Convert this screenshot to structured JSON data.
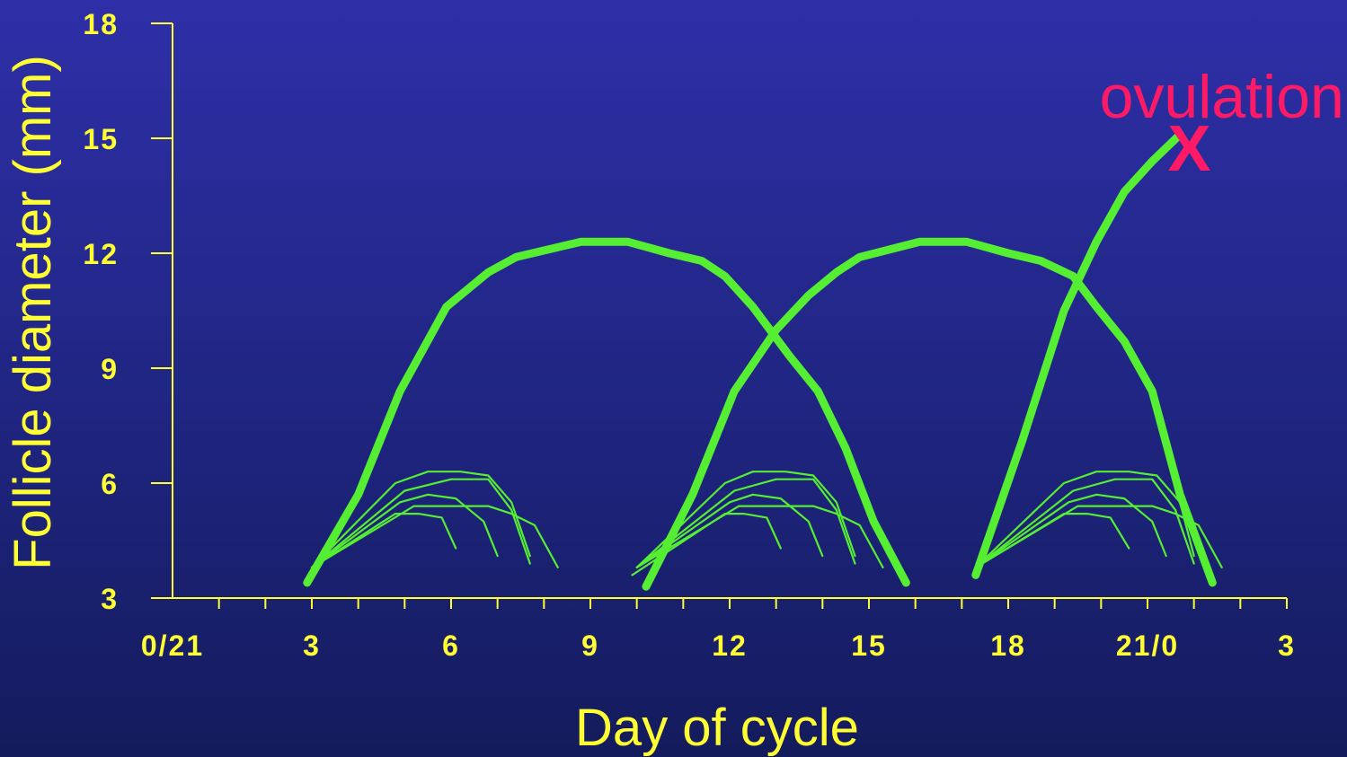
{
  "chart_data": {
    "type": "line",
    "title": "",
    "xlabel": "Day of cycle",
    "ylabel": "Follicle diameter (mm)",
    "xlim": [
      0,
      24
    ],
    "ylim": [
      3,
      18
    ],
    "x_ticks": [
      "0/21",
      "3",
      "6",
      "9",
      "12",
      "15",
      "18",
      "21/0",
      "3"
    ],
    "y_ticks": [
      "3",
      "6",
      "9",
      "12",
      "15",
      "18"
    ],
    "grid": false,
    "colors": {
      "series": "#55ee33",
      "axis": "#ffff33",
      "annotation": "#ff1a66"
    },
    "annotations": [
      {
        "text": "ovulation",
        "x": 22.6,
        "y": 16.1
      },
      {
        "text": "X",
        "x": 21.9,
        "y": 15.0
      }
    ],
    "series": [
      {
        "role": "dominant",
        "x": [
          2.9,
          4.0,
          4.9,
          5.9,
          6.8,
          7.4,
          8.8,
          9.8,
          10.7,
          11.4,
          11.9,
          12.5,
          13.3,
          13.9,
          14.5,
          15.1,
          15.8
        ],
        "y": [
          3.4,
          5.7,
          8.4,
          10.6,
          11.5,
          11.9,
          12.3,
          12.3,
          12.0,
          11.8,
          11.4,
          10.6,
          9.3,
          8.4,
          6.9,
          5.0,
          3.4
        ]
      },
      {
        "role": "dominant",
        "x": [
          10.2,
          11.2,
          12.1,
          13.0,
          13.7,
          14.3,
          14.8,
          16.1,
          17.1,
          18.0,
          18.7,
          19.4,
          19.9,
          20.5,
          21.1,
          21.7,
          22.4
        ],
        "y": [
          3.3,
          5.7,
          8.4,
          10.0,
          10.9,
          11.5,
          11.9,
          12.3,
          12.3,
          12.0,
          11.8,
          11.4,
          10.6,
          9.7,
          8.4,
          5.7,
          3.4
        ]
      },
      {
        "role": "dominant",
        "x": [
          17.3,
          18.3,
          19.2,
          19.9,
          20.5,
          21.1,
          21.7
        ],
        "y": [
          3.6,
          7.1,
          10.5,
          12.3,
          13.6,
          14.4,
          15.1
        ]
      },
      {
        "role": "subordinate",
        "x": [
          3.0,
          4.8,
          5.3,
          5.8,
          6.1
        ],
        "y": [
          3.8,
          5.2,
          5.2,
          5.1,
          4.3
        ]
      },
      {
        "role": "subordinate",
        "x": [
          3.0,
          4.9,
          5.5,
          6.1,
          6.7,
          7.0
        ],
        "y": [
          3.8,
          5.5,
          5.7,
          5.6,
          5.0,
          4.1
        ]
      },
      {
        "role": "subordinate",
        "x": [
          3.0,
          5.0,
          6.0,
          6.8,
          7.3,
          7.7
        ],
        "y": [
          3.8,
          5.8,
          6.1,
          6.1,
          5.3,
          3.9
        ]
      },
      {
        "role": "subordinate",
        "x": [
          3.0,
          4.8,
          5.5,
          6.2,
          6.8,
          7.3,
          7.7
        ],
        "y": [
          3.8,
          6.0,
          6.3,
          6.3,
          6.2,
          5.5,
          4.1
        ]
      },
      {
        "role": "subordinate",
        "x": [
          3.0,
          5.2,
          6.8,
          7.3,
          7.8,
          8.3
        ],
        "y": [
          3.8,
          5.4,
          5.4,
          5.2,
          4.9,
          3.8
        ]
      },
      {
        "role": "subordinate",
        "x": [
          9.9,
          11.9,
          12.3,
          12.8,
          13.1
        ],
        "y": [
          3.6,
          5.2,
          5.2,
          5.1,
          4.3
        ]
      },
      {
        "role": "subordinate",
        "x": [
          10.0,
          12.0,
          12.5,
          13.1,
          13.7,
          14.0
        ],
        "y": [
          3.8,
          5.5,
          5.7,
          5.6,
          5.0,
          4.1
        ]
      },
      {
        "role": "subordinate",
        "x": [
          10.0,
          12.1,
          13.0,
          13.8,
          14.3,
          14.7
        ],
        "y": [
          3.8,
          5.8,
          6.1,
          6.1,
          5.3,
          3.9
        ]
      },
      {
        "role": "subordinate",
        "x": [
          10.0,
          11.9,
          12.5,
          13.2,
          13.8,
          14.3,
          14.7
        ],
        "y": [
          3.8,
          6.0,
          6.3,
          6.3,
          6.2,
          5.5,
          4.1
        ]
      },
      {
        "role": "subordinate",
        "x": [
          10.0,
          12.2,
          13.8,
          14.3,
          14.8,
          15.3
        ],
        "y": [
          3.8,
          5.4,
          5.4,
          5.2,
          4.9,
          3.8
        ]
      },
      {
        "role": "subordinate",
        "x": [
          17.3,
          19.2,
          19.7,
          20.2,
          20.6
        ],
        "y": [
          3.8,
          5.2,
          5.2,
          5.1,
          4.3
        ]
      },
      {
        "role": "subordinate",
        "x": [
          17.3,
          19.3,
          19.9,
          20.5,
          21.1,
          21.4
        ],
        "y": [
          3.8,
          5.5,
          5.7,
          5.6,
          5.0,
          4.1
        ]
      },
      {
        "role": "subordinate",
        "x": [
          17.3,
          19.4,
          20.3,
          21.1,
          21.6,
          22.0
        ],
        "y": [
          3.8,
          5.8,
          6.1,
          6.1,
          5.3,
          3.9
        ]
      },
      {
        "role": "subordinate",
        "x": [
          17.3,
          19.2,
          19.9,
          20.6,
          21.2,
          21.7,
          22.0
        ],
        "y": [
          3.8,
          6.0,
          6.3,
          6.3,
          6.2,
          5.5,
          4.1
        ]
      },
      {
        "role": "subordinate",
        "x": [
          17.3,
          19.5,
          21.1,
          21.6,
          22.1,
          22.6
        ],
        "y": [
          3.8,
          5.4,
          5.4,
          5.2,
          4.9,
          3.8
        ]
      }
    ]
  }
}
